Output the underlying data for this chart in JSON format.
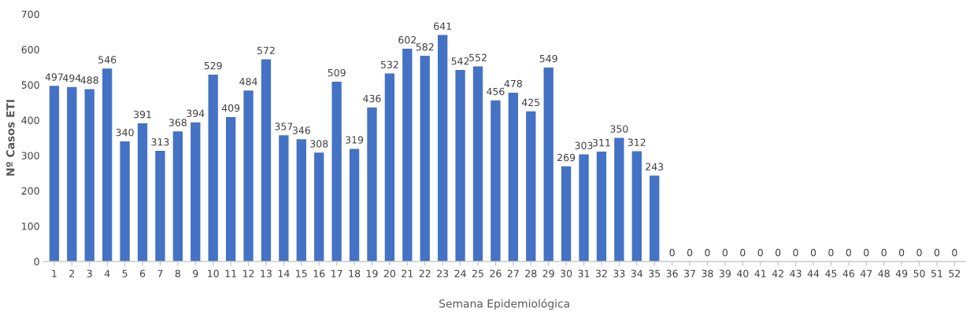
{
  "chart_data": {
    "type": "bar",
    "xlabel": "Semana Epidemiológica",
    "ylabel": "Nº Casos ETI",
    "categories": [
      "1",
      "2",
      "3",
      "4",
      "5",
      "6",
      "7",
      "8",
      "9",
      "10",
      "11",
      "12",
      "13",
      "14",
      "15",
      "16",
      "17",
      "18",
      "19",
      "20",
      "21",
      "22",
      "23",
      "24",
      "25",
      "26",
      "27",
      "28",
      "29",
      "30",
      "31",
      "32",
      "33",
      "34",
      "35",
      "36",
      "37",
      "38",
      "39",
      "40",
      "41",
      "42",
      "43",
      "44",
      "45",
      "46",
      "47",
      "48",
      "49",
      "50",
      "51",
      "52"
    ],
    "values": [
      497,
      494,
      488,
      546,
      340,
      391,
      313,
      368,
      394,
      529,
      409,
      484,
      572,
      357,
      346,
      308,
      509,
      319,
      436,
      532,
      602,
      582,
      641,
      542,
      552,
      456,
      478,
      425,
      549,
      269,
      303,
      311,
      350,
      312,
      243,
      0,
      0,
      0,
      0,
      0,
      0,
      0,
      0,
      0,
      0,
      0,
      0,
      0,
      0,
      0,
      0,
      0
    ],
    "color": "#4472c4",
    "ylim": [
      0,
      700
    ],
    "yticks": [
      0,
      100,
      200,
      300,
      400,
      500,
      600,
      700
    ],
    "grid": false,
    "legend": false,
    "data_labels": true
  }
}
